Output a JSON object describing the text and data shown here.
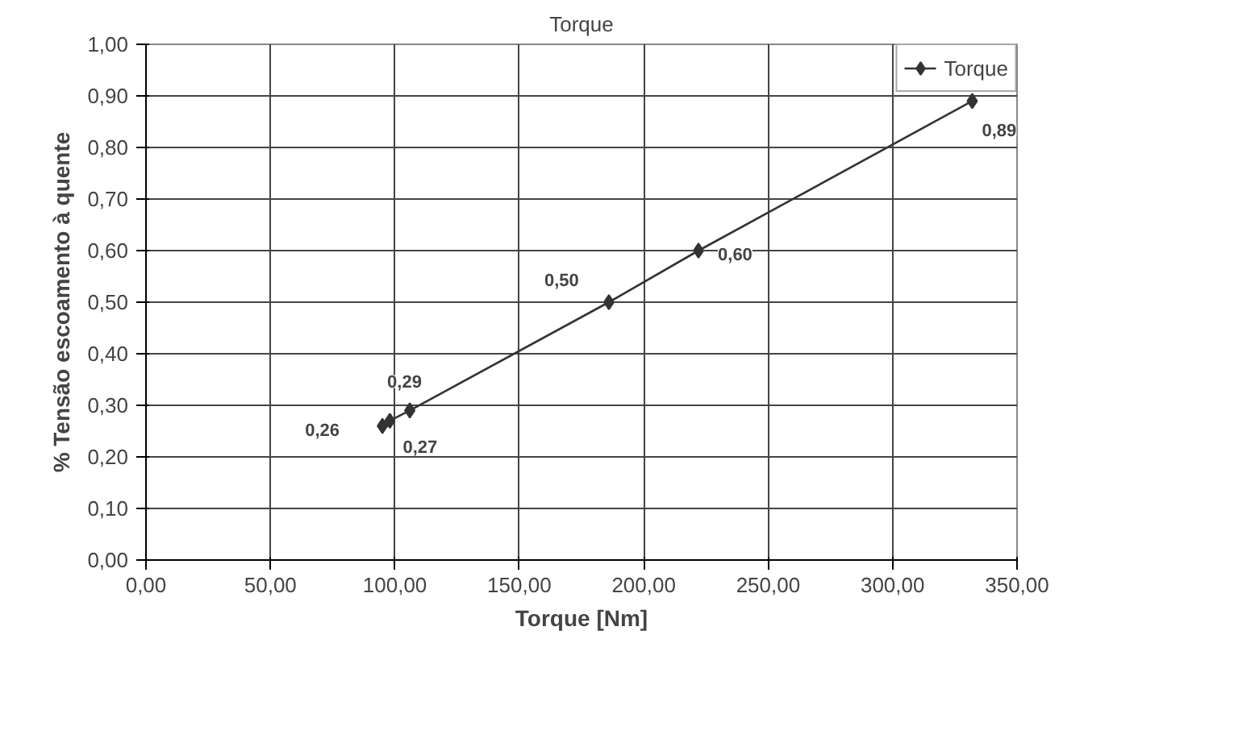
{
  "chart_data": {
    "type": "line",
    "title": "Torque",
    "xlabel": "Torque [Nm]",
    "ylabel": "% Tensão escoamento à quente",
    "x": [
      95,
      98,
      106,
      186,
      222,
      332
    ],
    "series": [
      {
        "name": "Torque",
        "color": "#333333",
        "values": [
          0.26,
          0.27,
          0.29,
          0.5,
          0.6,
          0.89
        ]
      }
    ],
    "xlim": [
      0,
      350
    ],
    "ylim": [
      0,
      1
    ],
    "xticks": [
      {
        "value": 0,
        "label": "0,00"
      },
      {
        "value": 50,
        "label": "50,00"
      },
      {
        "value": 100,
        "label": "100,00"
      },
      {
        "value": 150,
        "label": "150,00"
      },
      {
        "value": 200,
        "label": "200,00"
      },
      {
        "value": 250,
        "label": "250,00"
      },
      {
        "value": 300,
        "label": "300,00"
      },
      {
        "value": 350,
        "label": "350,00"
      }
    ],
    "yticks": [
      {
        "value": 0,
        "label": "0,00"
      },
      {
        "value": 0.1,
        "label": "0,10"
      },
      {
        "value": 0.2,
        "label": "0,20"
      },
      {
        "value": 0.3,
        "label": "0,30"
      },
      {
        "value": 0.4,
        "label": "0,40"
      },
      {
        "value": 0.5,
        "label": "0,50"
      },
      {
        "value": 0.6,
        "label": "0,60"
      },
      {
        "value": 0.7,
        "label": "0,70"
      },
      {
        "value": 0.8,
        "label": "0,80"
      },
      {
        "value": 0.9,
        "label": "0,90"
      },
      {
        "value": 1,
        "label": "1,00"
      }
    ],
    "value_labels": [
      "0,26",
      "0,27",
      "0,29",
      "0,50",
      "0,60",
      "0,89"
    ],
    "grid": true,
    "legend": "top right",
    "marker": "diamond",
    "line_style": "solid"
  }
}
